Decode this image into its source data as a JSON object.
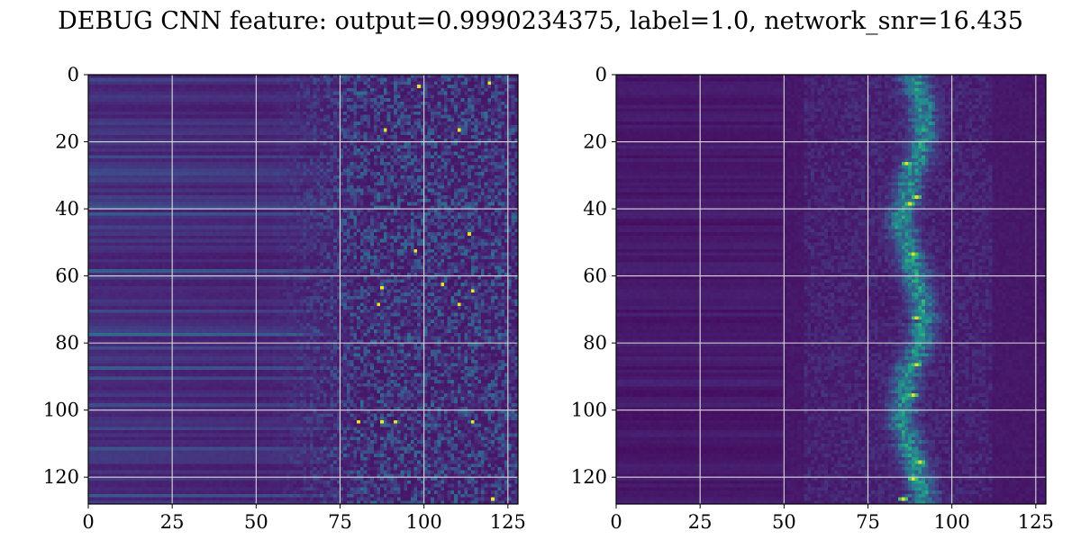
{
  "title": "DEBUG CNN feature: output=0.9990234375, label=1.0, network_snr=16.435",
  "chart_data": [
    {
      "type": "heatmap",
      "colormap": "viridis",
      "shape": [
        128,
        128
      ],
      "xlim": [
        0,
        128
      ],
      "ylim": [
        128,
        0
      ],
      "xticks": [
        0,
        25,
        50,
        75,
        100,
        125
      ],
      "yticks": [
        0,
        20,
        40,
        60,
        80,
        100,
        120
      ],
      "xtick_labels": [
        "0",
        "25",
        "50",
        "75",
        "100",
        "125"
      ],
      "ytick_labels": [
        "0",
        "20",
        "40",
        "60",
        "80",
        "100",
        "120"
      ],
      "grid": true,
      "pattern": "horizontal banding for columns 0-70, noisy speckle with bright hot spots for columns 75-127",
      "bright_spots": [
        [
          98,
          3
        ],
        [
          119,
          2
        ],
        [
          88,
          16
        ],
        [
          110,
          16
        ],
        [
          113,
          47
        ],
        [
          97,
          52
        ],
        [
          87,
          63
        ],
        [
          105,
          62
        ],
        [
          114,
          64
        ],
        [
          110,
          68
        ],
        [
          86,
          68
        ],
        [
          80,
          103
        ],
        [
          87,
          103
        ],
        [
          91,
          103
        ],
        [
          114,
          103
        ],
        [
          120,
          126
        ]
      ]
    },
    {
      "type": "heatmap",
      "colormap": "viridis",
      "shape": [
        128,
        128
      ],
      "xlim": [
        0,
        128
      ],
      "ylim": [
        128,
        0
      ],
      "xticks": [
        0,
        25,
        50,
        75,
        100,
        125
      ],
      "yticks": [
        0,
        20,
        40,
        60,
        80,
        100,
        120
      ],
      "xtick_labels": [
        "0",
        "25",
        "50",
        "75",
        "100",
        "125"
      ],
      "ytick_labels": [
        "0",
        "20",
        "40",
        "60",
        "80",
        "100",
        "120"
      ],
      "grid": true,
      "pattern": "dark field with faint streaks for columns 55-110, bright vertical ridge centred near column 88",
      "ridge_center_x": 88,
      "bright_spots": [
        [
          89,
          36
        ],
        [
          87,
          38
        ],
        [
          86,
          26
        ],
        [
          89,
          72
        ],
        [
          88,
          53
        ],
        [
          89,
          86
        ],
        [
          88,
          95
        ],
        [
          90,
          115
        ],
        [
          88,
          120
        ],
        [
          85,
          126
        ]
      ]
    }
  ]
}
